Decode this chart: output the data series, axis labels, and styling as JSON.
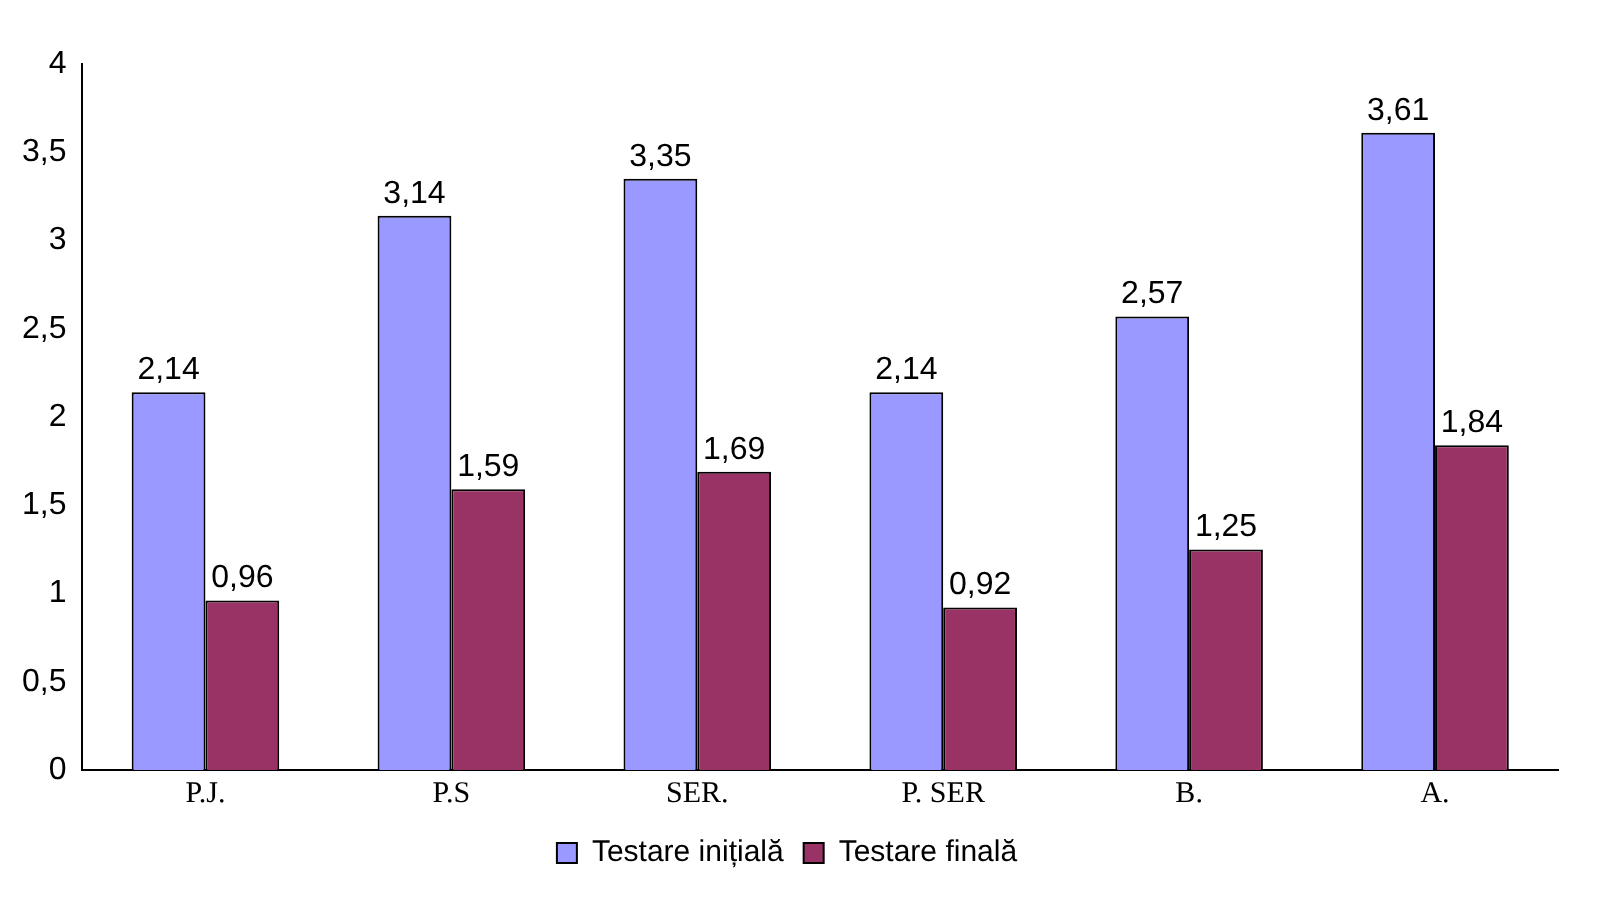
{
  "chart_data": {
    "type": "bar",
    "categories": [
      "P.J.",
      "P.S",
      "SER.",
      "P. SER",
      "B.",
      "A."
    ],
    "series": [
      {
        "name": "Testare inițială",
        "color": "#9999ff",
        "values": [
          2.14,
          3.14,
          3.35,
          2.14,
          2.57,
          3.61
        ],
        "value_labels": [
          "2,14",
          "3,14",
          "3,35",
          "2,14",
          "2,57",
          "3,61"
        ]
      },
      {
        "name": "Testare finală",
        "color": "#993366",
        "values": [
          0.96,
          1.59,
          1.69,
          0.92,
          1.25,
          1.84
        ],
        "value_labels": [
          "0,96",
          "1,59",
          "1,69",
          "0,92",
          "1,25",
          "1,84"
        ]
      }
    ],
    "ylim": [
      0,
      4
    ],
    "yticks": [
      0,
      {
        "value": 0.5,
        "label": "0,5"
      },
      1,
      {
        "value": 1.5,
        "label": "1,5"
      },
      2,
      {
        "value": 2.5,
        "label": "2,5"
      },
      3,
      {
        "value": 3.5,
        "label": "3,5"
      },
      4
    ],
    "grid": false,
    "legend": "bottom"
  }
}
